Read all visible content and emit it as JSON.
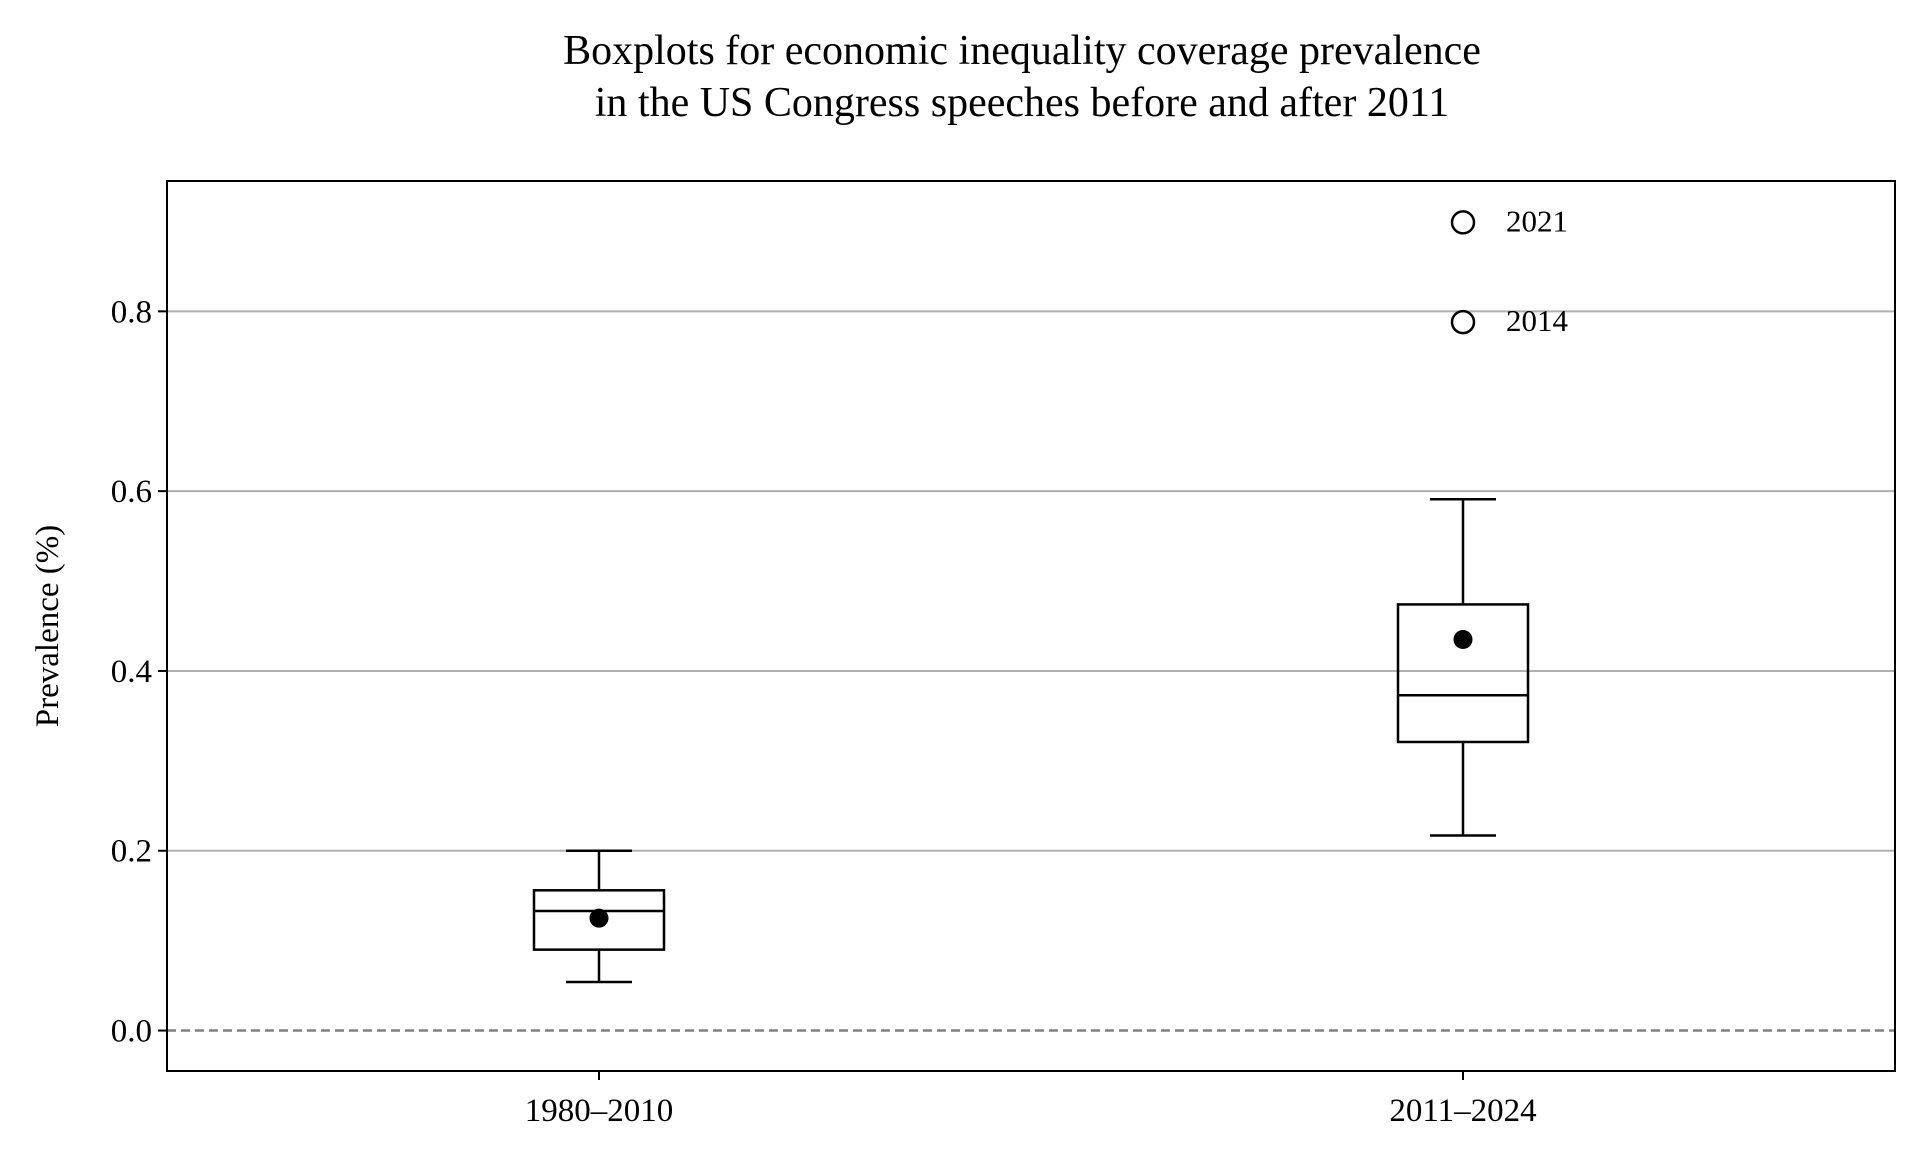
{
  "chart_data": {
    "type": "boxplot",
    "title_lines": [
      "Boxplots for economic inequality coverage prevalence",
      "in the US Congress speeches before and after 2011"
    ],
    "xlabel": "",
    "ylabel": "Prevalence (%)",
    "ylim": [
      -0.045,
      0.945
    ],
    "yticks": [
      0.0,
      0.2,
      0.4,
      0.6,
      0.8
    ],
    "ytick_labels": [
      "0.0",
      "0.2",
      "0.4",
      "0.6",
      "0.8"
    ],
    "grid": "horizontal",
    "zero_reference_line": "dashed",
    "categories": [
      "1980–2010",
      "2011–2024"
    ],
    "boxes": [
      {
        "category": "1980–2010",
        "whisker_low": 0.054,
        "q1": 0.09,
        "median": 0.133,
        "q3": 0.156,
        "whisker_high": 0.2,
        "mean": 0.125,
        "outliers": []
      },
      {
        "category": "2011–2024",
        "whisker_low": 0.217,
        "q1": 0.321,
        "median": 0.373,
        "q3": 0.474,
        "whisker_high": 0.591,
        "mean": 0.435,
        "outliers": [
          {
            "value": 0.899,
            "label": "2021"
          },
          {
            "value": 0.788,
            "label": "2014"
          }
        ]
      }
    ],
    "colors": {
      "line": "#000000",
      "grid": "#b0b0b0",
      "zero_line": "#808080",
      "mean_marker": "#000000"
    }
  }
}
